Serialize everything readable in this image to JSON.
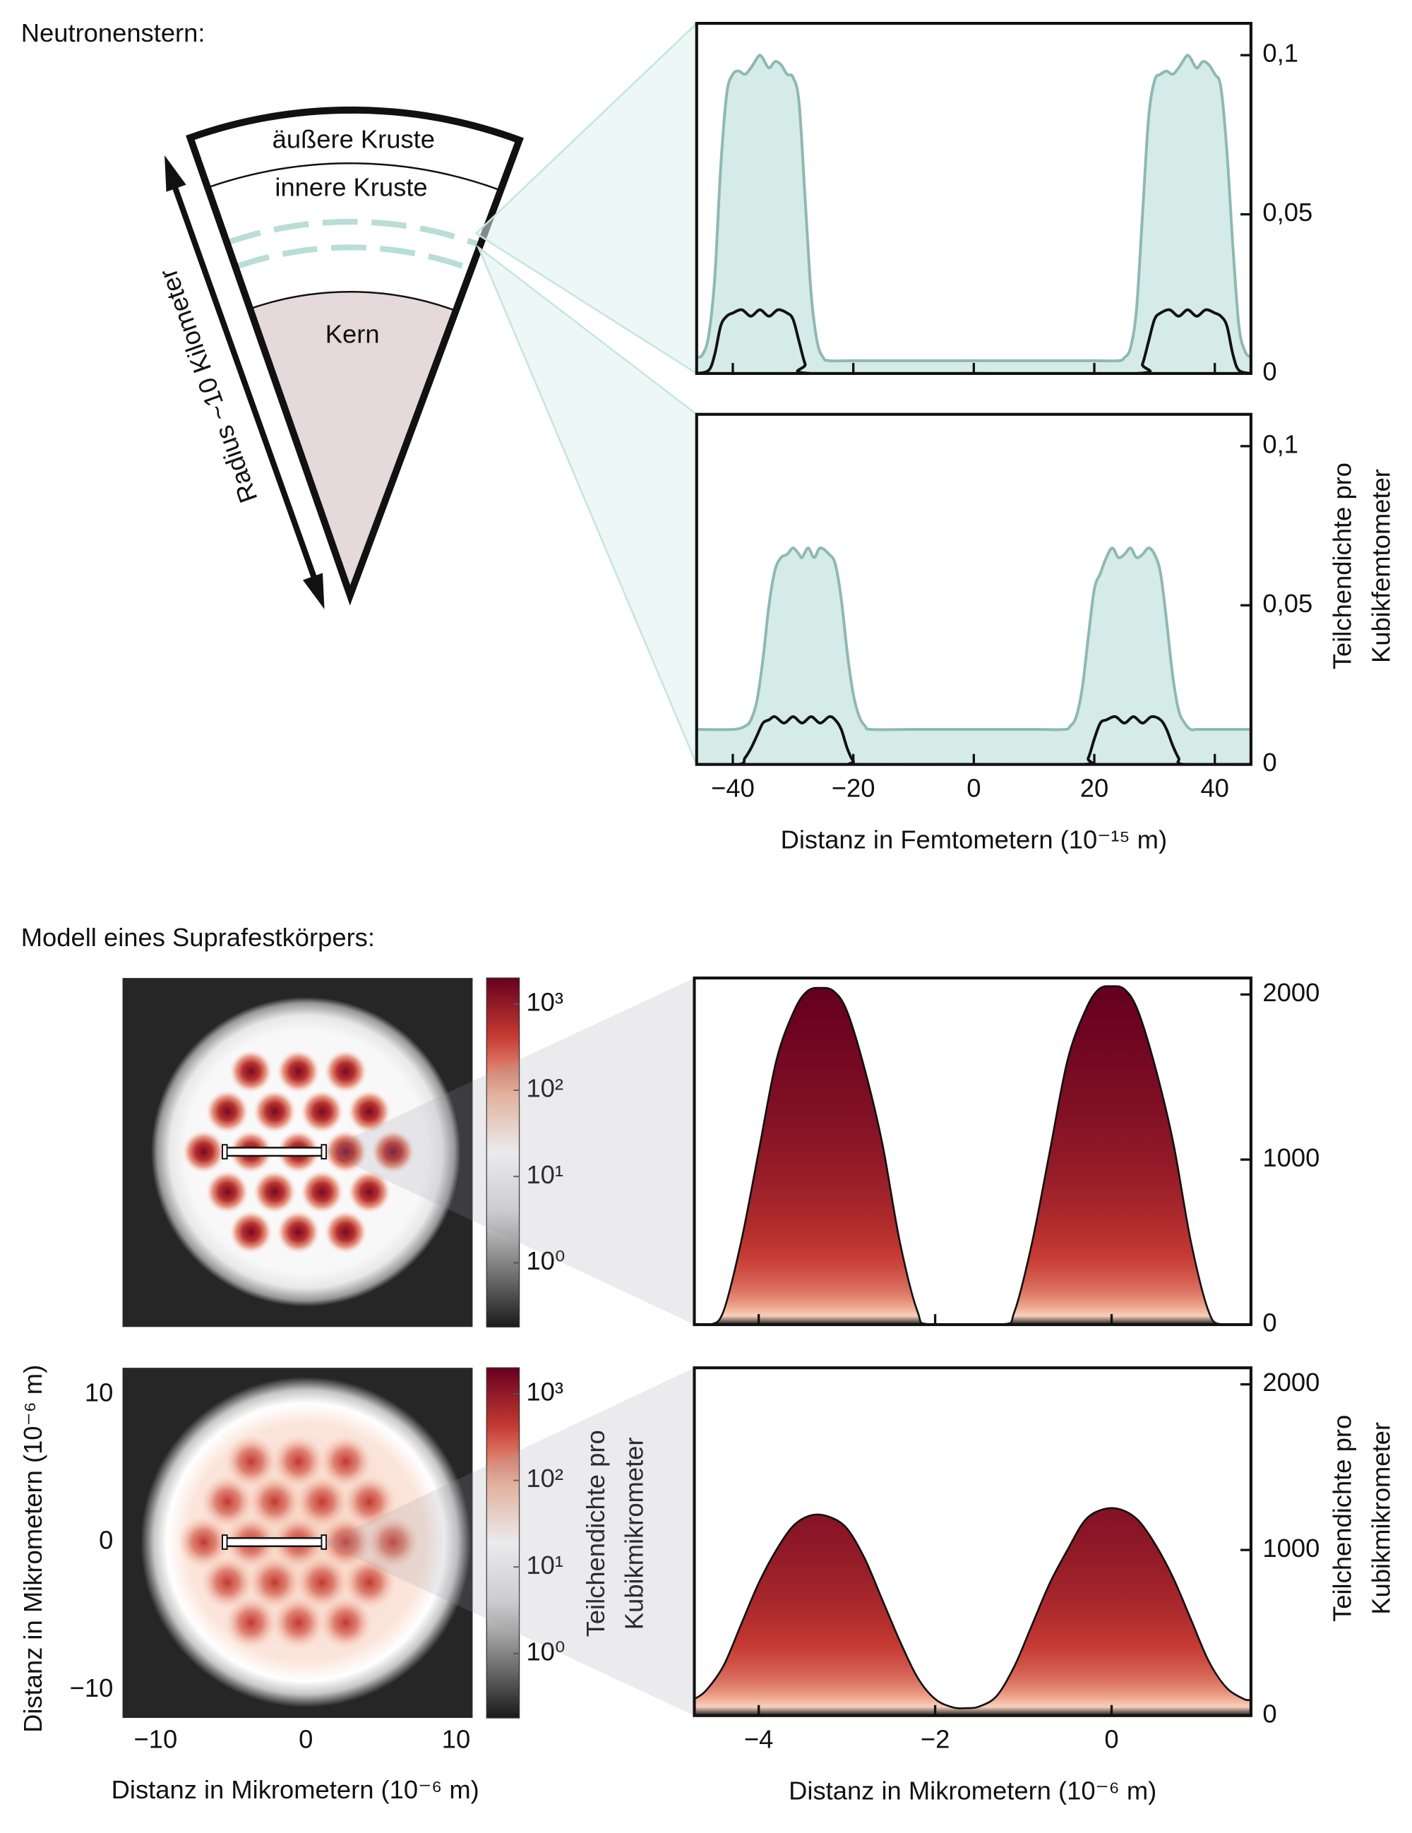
{
  "sections": [
    {
      "title": "Neutronenstern:"
    },
    {
      "title": "Modell eines Suprafestkörpers:"
    }
  ],
  "diagram": {
    "layers": [
      "äußere Kruste",
      "innere Kruste",
      "Kern"
    ],
    "radius_label": "Radius ~10 Kilometer"
  },
  "chart_data": [
    {
      "type": "area",
      "xlim": [
        -46,
        46
      ],
      "ylim": [
        0,
        0.11
      ],
      "yticks": [
        0,
        {
          "value": 0.05,
          "label": "0,05"
        },
        {
          "value": 0.1,
          "label": "0,1"
        }
      ],
      "series": [
        {
          "color": "#8fb8b2",
          "fill": "#d5ebe7",
          "x": [
            -46,
            -45,
            -44,
            -43,
            -42,
            -41,
            -40,
            -39,
            -38,
            -37,
            -36,
            -35.5,
            -35,
            -34,
            -33,
            -32,
            -31,
            -30,
            -29,
            -28,
            -27,
            -26,
            -25,
            -24,
            -20,
            -10,
            0,
            10,
            20,
            24,
            25,
            26,
            27,
            28,
            29,
            30,
            31,
            32,
            33,
            34,
            35,
            35.5,
            36,
            37,
            38,
            39,
            40,
            41,
            42,
            43,
            44,
            45,
            46
          ],
          "values": [
            0.005,
            0.006,
            0.012,
            0.03,
            0.065,
            0.088,
            0.094,
            0.095,
            0.094,
            0.096,
            0.099,
            0.1,
            0.099,
            0.096,
            0.098,
            0.097,
            0.094,
            0.093,
            0.085,
            0.055,
            0.025,
            0.01,
            0.005,
            0.004,
            0.004,
            0.004,
            0.004,
            0.004,
            0.004,
            0.004,
            0.005,
            0.008,
            0.02,
            0.05,
            0.08,
            0.092,
            0.094,
            0.095,
            0.094,
            0.096,
            0.099,
            0.1,
            0.099,
            0.096,
            0.098,
            0.097,
            0.094,
            0.09,
            0.07,
            0.04,
            0.015,
            0.007,
            0.005
          ]
        },
        {
          "color": "#111111",
          "x": [
            -46,
            -44,
            -43,
            -42,
            -41,
            -40,
            -38.5,
            -37,
            -35.5,
            -34,
            -32.5,
            -31,
            -30,
            -29,
            -28,
            -27,
            0,
            27,
            28,
            29,
            30,
            31,
            32.5,
            34,
            35.5,
            37,
            38.5,
            40,
            41,
            42,
            43,
            44,
            46
          ],
          "values": [
            0,
            0.001,
            0.006,
            0.015,
            0.018,
            0.019,
            0.02,
            0.018,
            0.02,
            0.018,
            0.02,
            0.019,
            0.017,
            0.01,
            0.003,
            0,
            0,
            0,
            0.003,
            0.01,
            0.017,
            0.019,
            0.02,
            0.018,
            0.02,
            0.018,
            0.02,
            0.019,
            0.018,
            0.015,
            0.006,
            0.001,
            0
          ]
        }
      ]
    },
    {
      "type": "area",
      "xlim": [
        -46,
        46
      ],
      "ylim": [
        0,
        0.11
      ],
      "xticks": [
        {
          "value": -40,
          "label": "−40"
        },
        {
          "value": -20,
          "label": "−20"
        },
        0,
        20,
        40
      ],
      "yticks": [
        0,
        {
          "value": 0.05,
          "label": "0,05"
        },
        {
          "value": 0.1,
          "label": "0,1"
        }
      ],
      "xlabel": "Distanz in Femtometern (10⁻¹⁵ m)",
      "ylabel": [
        "Teilchendichte pro",
        "Kubikfemtometer"
      ],
      "series": [
        {
          "color": "#8fb8b2",
          "fill": "#d5ebe7",
          "x": [
            -46,
            -40,
            -38,
            -37,
            -36,
            -35,
            -34,
            -33,
            -32,
            -31,
            -30,
            -29,
            -28.5,
            -27.5,
            -26.5,
            -25.5,
            -24,
            -23,
            -22,
            -21,
            -20,
            -19,
            -18,
            -17,
            -10,
            0,
            10,
            15,
            16,
            17,
            18,
            19,
            20,
            21,
            22,
            23,
            24,
            25,
            26,
            27,
            28,
            29,
            30,
            31,
            32,
            33,
            34,
            35,
            36,
            37,
            40,
            46
          ],
          "values": [
            0.011,
            0.011,
            0.012,
            0.014,
            0.02,
            0.033,
            0.05,
            0.061,
            0.065,
            0.066,
            0.068,
            0.066,
            0.065,
            0.068,
            0.065,
            0.068,
            0.066,
            0.063,
            0.052,
            0.035,
            0.022,
            0.015,
            0.012,
            0.011,
            0.011,
            0.011,
            0.011,
            0.011,
            0.012,
            0.015,
            0.024,
            0.04,
            0.055,
            0.06,
            0.065,
            0.068,
            0.065,
            0.066,
            0.068,
            0.065,
            0.066,
            0.068,
            0.066,
            0.06,
            0.045,
            0.028,
            0.017,
            0.013,
            0.011,
            0.011,
            0.011,
            0.011
          ]
        },
        {
          "color": "#111111",
          "x": [
            -46,
            -39,
            -38,
            -37,
            -36,
            -35,
            -34,
            -33,
            -31.5,
            -30,
            -28.5,
            -27,
            -25.5,
            -24,
            -23,
            -22,
            -21,
            -20,
            -19,
            0,
            18,
            19,
            20,
            21,
            22,
            23.5,
            25,
            26.5,
            28,
            29.5,
            31,
            32,
            33,
            34,
            35,
            46
          ],
          "values": [
            0,
            0,
            0.002,
            0.005,
            0.009,
            0.013,
            0.014,
            0.015,
            0.013,
            0.015,
            0.013,
            0.015,
            0.013,
            0.015,
            0.014,
            0.011,
            0.005,
            0.001,
            0,
            0,
            0,
            0.002,
            0.008,
            0.013,
            0.014,
            0.015,
            0.013,
            0.015,
            0.013,
            0.015,
            0.014,
            0.011,
            0.006,
            0.002,
            0,
            0
          ]
        }
      ]
    },
    {
      "type": "heatmap",
      "xlim": [
        -12.2,
        11.1
      ],
      "ylim": [
        -11.9,
        11.8
      ],
      "clim": [
        0.18,
        2000
      ],
      "log": true,
      "cticks": [
        {
          "value": 1,
          "label": "10⁰"
        },
        {
          "value": 10,
          "label": "10¹"
        },
        {
          "value": 100,
          "label": "10²"
        },
        {
          "value": 1000,
          "label": "10³"
        }
      ],
      "colormap": [
        "#1a1a1a",
        "#7a7a7a",
        "#d9d9d9",
        "#ffffff",
        "#f4b79b",
        "#c63a32",
        "#67001f"
      ]
    },
    {
      "type": "heatmap",
      "xlim": [
        -12.2,
        11.1
      ],
      "ylim": [
        -11.9,
        11.8
      ],
      "clim": [
        0.18,
        2000
      ],
      "log": true,
      "xticks": [
        {
          "value": -10,
          "label": "−10"
        },
        0,
        10
      ],
      "yticks": [
        {
          "value": -10,
          "label": "−10"
        },
        0,
        10
      ],
      "xlabel": "Distanz in Mikrometern (10⁻⁶ m)",
      "ylabel": "Distanz in Mikrometern (10⁻⁶ m)",
      "cticks": [
        {
          "value": 1,
          "label": "10⁰"
        },
        {
          "value": 10,
          "label": "10¹"
        },
        {
          "value": 100,
          "label": "10²"
        },
        {
          "value": 1000,
          "label": "10³"
        }
      ],
      "clabel": [
        "Teilchendichte pro",
        "Kubikmikrometer"
      ],
      "colormap": [
        "#1a1a1a",
        "#7a7a7a",
        "#d9d9d9",
        "#ffffff",
        "#f4b79b",
        "#c63a32",
        "#67001f"
      ]
    },
    {
      "type": "area",
      "xlim": [
        -4.73,
        1.58
      ],
      "ylim": [
        0,
        2100
      ],
      "yticks": [
        0,
        1000,
        2000
      ],
      "series": [
        {
          "color": "#111111",
          "x": [
            -4.73,
            -4.55,
            -4.4,
            -4.2,
            -4.0,
            -3.8,
            -3.6,
            -3.45,
            -3.3,
            -3.15,
            -3.0,
            -2.8,
            -2.6,
            -2.4,
            -2.2,
            -2.05,
            -1.25,
            -1.1,
            -0.9,
            -0.7,
            -0.5,
            -0.3,
            -0.15,
            0,
            0.15,
            0.3,
            0.5,
            0.7,
            0.9,
            1.1,
            1.25,
            1.58
          ],
          "values": [
            0,
            0,
            80,
            500,
            1050,
            1600,
            1900,
            2020,
            2040,
            2020,
            1900,
            1550,
            1100,
            500,
            80,
            0,
            0,
            80,
            500,
            1050,
            1600,
            1900,
            2030,
            2050,
            2030,
            1900,
            1550,
            1100,
            500,
            80,
            0,
            0
          ]
        }
      ]
    },
    {
      "type": "area",
      "xlim": [
        -4.73,
        1.58
      ],
      "ylim": [
        0,
        2100
      ],
      "xticks": [
        {
          "value": -4,
          "label": "−4"
        },
        {
          "value": -2,
          "label": "−2"
        },
        0
      ],
      "yticks": [
        0,
        1000,
        2000
      ],
      "xlabel": "Distanz in Mikrometern (10⁻⁶ m)",
      "ylabel": [
        "Teilchendichte pro",
        "Kubikmikrometer"
      ],
      "series": [
        {
          "color": "#111111",
          "x": [
            -4.73,
            -4.6,
            -4.4,
            -4.2,
            -4.0,
            -3.8,
            -3.6,
            -3.4,
            -3.2,
            -3.0,
            -2.8,
            -2.6,
            -2.4,
            -2.2,
            -2.0,
            -1.8,
            -1.65,
            -1.5,
            -1.3,
            -1.1,
            -0.9,
            -0.7,
            -0.5,
            -0.3,
            -0.1,
            0.1,
            0.3,
            0.5,
            0.7,
            0.9,
            1.1,
            1.3,
            1.5,
            1.58
          ],
          "values": [
            100,
            150,
            300,
            550,
            800,
            1000,
            1150,
            1210,
            1200,
            1130,
            950,
            700,
            450,
            230,
            100,
            50,
            45,
            55,
            120,
            300,
            550,
            800,
            1000,
            1180,
            1245,
            1245,
            1180,
            1030,
            830,
            580,
            330,
            170,
            100,
            95
          ]
        }
      ]
    }
  ]
}
